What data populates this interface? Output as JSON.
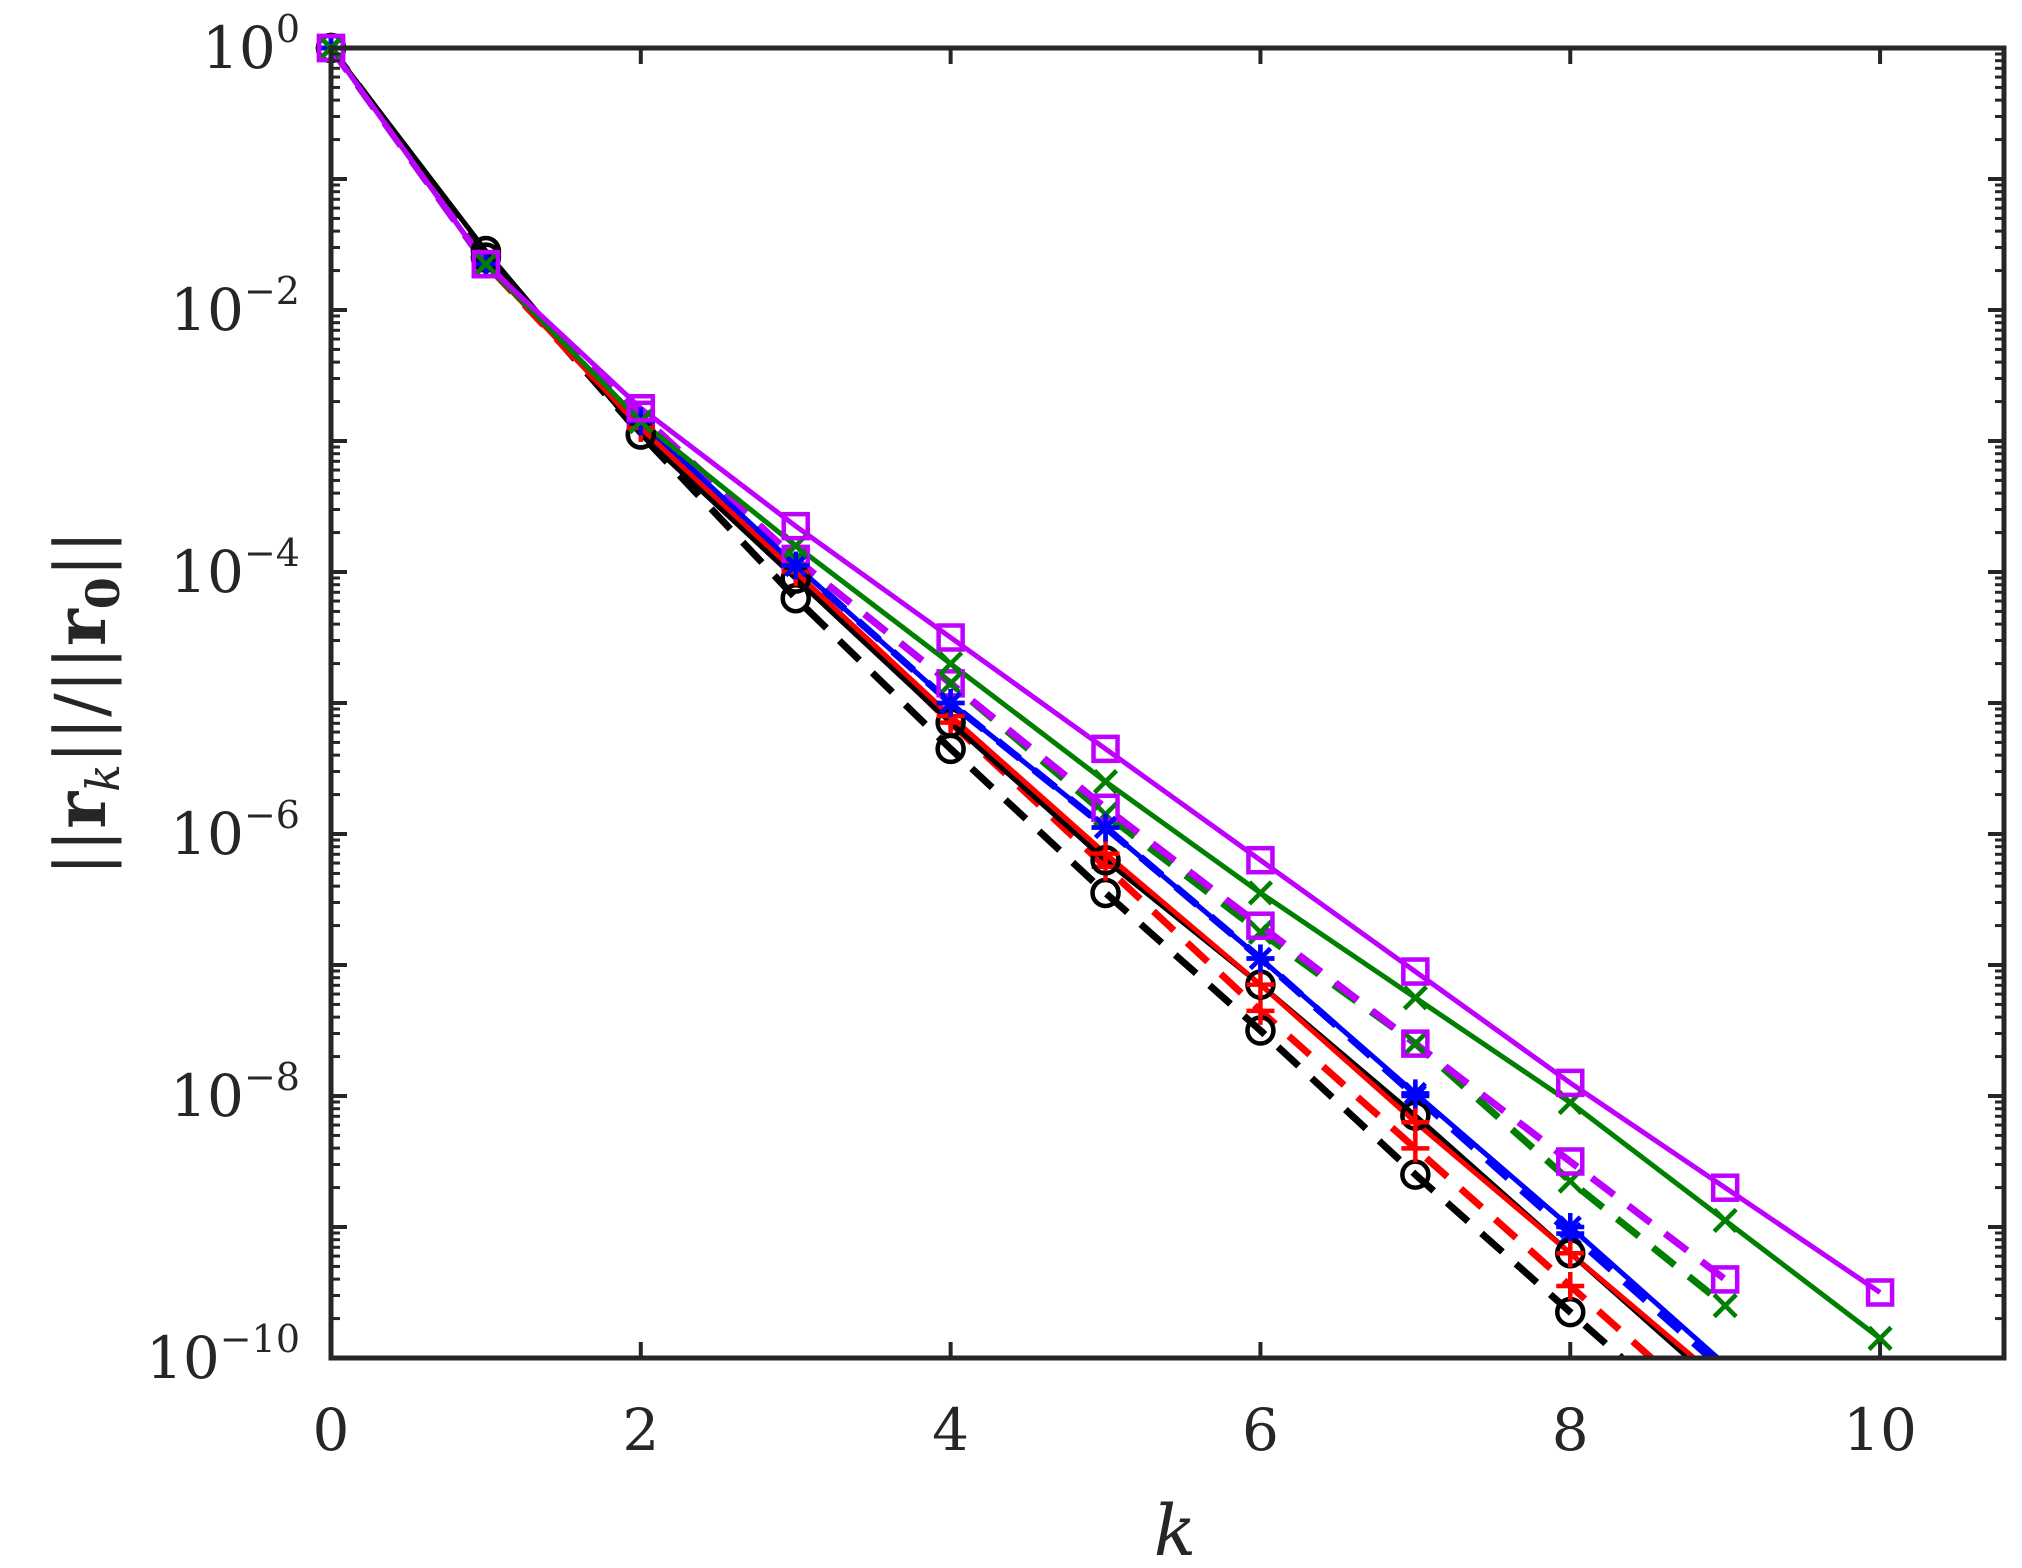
{
  "chart_data": {
    "type": "line",
    "title": "",
    "xlabel": "k",
    "ylabel": "||r_k||/||r_0||",
    "ylabel_parts": {
      "open": "||",
      "r_sym": "r",
      "k_sub": "k",
      "mid": "||/||",
      "zero_sub": "0",
      "close": "||"
    },
    "xscale": "linear",
    "yscale": "log",
    "xlim": [
      0,
      10.8
    ],
    "ylim_exp": [
      -10,
      0
    ],
    "grid": false,
    "legend": "none",
    "x_ticks": [
      "0",
      "2",
      "4",
      "6",
      "8",
      "10"
    ],
    "y_ticks": [
      {
        "base": "10",
        "exp": "0"
      },
      {
        "base": "10",
        "exp": "−2"
      },
      {
        "base": "10",
        "exp": "−4"
      },
      {
        "base": "10",
        "exp": "−6"
      },
      {
        "base": "10",
        "exp": "−8"
      },
      {
        "base": "10",
        "exp": "−10"
      }
    ],
    "series": [
      {
        "color": "#000000",
        "dash": "solid",
        "marker": "circle",
        "x": [
          0,
          1,
          2,
          3,
          4,
          5,
          6,
          7,
          8,
          9
        ],
        "log10_y": [
          0,
          -1.55,
          -2.95,
          -4.05,
          -5.15,
          -6.2,
          -7.15,
          -8.15,
          -9.2,
          -10.25
        ]
      },
      {
        "color": "#000000",
        "dash": "dashed",
        "marker": "circle",
        "x": [
          0,
          1,
          2,
          3,
          4,
          5,
          6,
          7,
          8,
          9
        ],
        "log10_y": [
          0,
          -1.6,
          -2.95,
          -4.2,
          -5.35,
          -6.45,
          -7.5,
          -8.6,
          -9.65,
          -10.7
        ]
      },
      {
        "color": "#ff0000",
        "dash": "solid",
        "marker": "plus",
        "x": [
          0,
          1,
          2,
          3,
          4,
          5,
          6,
          7,
          8,
          9
        ],
        "log10_y": [
          0,
          -1.65,
          -2.9,
          -4.0,
          -5.1,
          -6.15,
          -7.15,
          -8.2,
          -9.2,
          -10.2
        ]
      },
      {
        "color": "#ff0000",
        "dash": "dashed",
        "marker": "plus",
        "x": [
          0,
          1,
          2,
          3,
          4,
          5,
          6,
          7,
          8,
          9
        ],
        "log10_y": [
          0,
          -1.65,
          -2.9,
          -4.0,
          -5.15,
          -6.25,
          -7.35,
          -8.4,
          -9.45,
          -10.5
        ]
      },
      {
        "color": "#0000ff",
        "dash": "solid",
        "marker": "asterisk",
        "x": [
          0,
          1,
          2,
          3,
          4,
          5,
          6,
          7,
          8,
          9
        ],
        "log10_y": [
          0,
          -1.65,
          -2.85,
          -3.95,
          -5.0,
          -5.95,
          -6.95,
          -7.98,
          -9.0,
          -10.05
        ]
      },
      {
        "color": "#0000ff",
        "dash": "dashed",
        "marker": "asterisk",
        "x": [
          0,
          1,
          2,
          3,
          4,
          5,
          6,
          7,
          8,
          9
        ],
        "log10_y": [
          0,
          -1.65,
          -2.85,
          -3.95,
          -5.0,
          -5.95,
          -6.95,
          -8.0,
          -9.05,
          -10.1
        ]
      },
      {
        "color": "#007f00",
        "dash": "solid",
        "marker": "x",
        "x": [
          0,
          1,
          2,
          3,
          4,
          5,
          6,
          7,
          8,
          9,
          10
        ],
        "log10_y": [
          0,
          -1.65,
          -2.85,
          -3.8,
          -4.7,
          -5.6,
          -6.45,
          -7.25,
          -8.05,
          -8.95,
          -9.85
        ]
      },
      {
        "color": "#007f00",
        "dash": "dashed",
        "marker": "x",
        "x": [
          0,
          1,
          2,
          3,
          4,
          5,
          6,
          7,
          8,
          9
        ],
        "log10_y": [
          0,
          -1.65,
          -2.85,
          -3.9,
          -4.85,
          -5.85,
          -6.75,
          -7.6,
          -8.65,
          -9.6
        ]
      },
      {
        "color": "#bf00ff",
        "dash": "solid",
        "marker": "square",
        "x": [
          0,
          1,
          2,
          3,
          4,
          5,
          6,
          7,
          8,
          9,
          10
        ],
        "log10_y": [
          0,
          -1.65,
          -2.75,
          -3.65,
          -4.5,
          -5.35,
          -6.2,
          -7.05,
          -7.9,
          -8.7,
          -9.5
        ]
      },
      {
        "color": "#bf00ff",
        "dash": "dashed",
        "marker": "square",
        "x": [
          0,
          1,
          2,
          3,
          4,
          5,
          6,
          7,
          8,
          9
        ],
        "log10_y": [
          0,
          -1.65,
          -2.8,
          -3.9,
          -4.85,
          -5.8,
          -6.7,
          -7.6,
          -8.5,
          -9.4
        ]
      }
    ]
  }
}
